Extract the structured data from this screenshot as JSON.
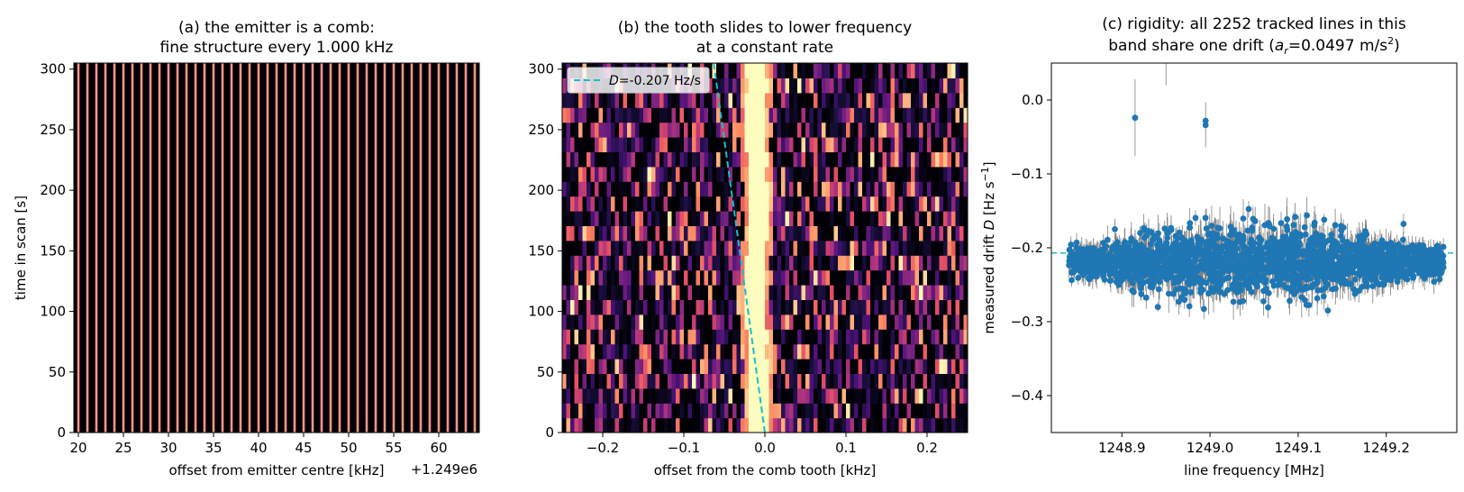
{
  "chart_data": [
    {
      "type": "heatmap",
      "panel": "a",
      "title_line1": "(a) the emitter is a comb:",
      "title_line2": "fine structure every 1.000 kHz",
      "xlabel": "offset from emitter centre [kHz]",
      "ylabel": "time in scan [s]",
      "x_offset_label": "+1.249e6",
      "xlim": [
        19.5,
        64.5
      ],
      "ylim": [
        0,
        305
      ],
      "xticks": [
        "20",
        "25",
        "30",
        "35",
        "40",
        "45",
        "50",
        "55",
        "60"
      ],
      "yticks": [
        "0",
        "50",
        "100",
        "150",
        "200",
        "250",
        "300"
      ],
      "tooth_spacing_khz": 1.0,
      "first_tooth_khz": 20.0,
      "colormap": "magma"
    },
    {
      "type": "heatmap",
      "panel": "b",
      "title_line1": "(b) the tooth slides to lower frequency",
      "title_line2": "at a constant rate",
      "xlabel": "offset from the comb tooth [kHz]",
      "xlim": [
        -0.25,
        0.25
      ],
      "ylim": [
        0,
        305
      ],
      "xticks": [
        "−0.2",
        "−0.1",
        "0.0",
        "0.1",
        "0.2"
      ],
      "yticks": [
        "0",
        "50",
        "100",
        "150",
        "200",
        "250",
        "300"
      ],
      "legend_label_italic": "D",
      "legend_label_rest": "=-0.207 Hz/s",
      "legend_placement": "upper-left",
      "drift_hz_per_s": -0.207,
      "fit_line_color": "#17becf",
      "colormap": "magma"
    },
    {
      "type": "scatter",
      "panel": "c",
      "title_line1": "(c) rigidity: all 2252 tracked lines in this",
      "title_line2_pre": "band share one drift (",
      "title_line2_var": "a",
      "title_line2_sub": "r",
      "title_line2_mid": "=0.0497 m/s",
      "title_line2_sup": "2",
      "title_line2_post": ")",
      "xlabel": "line frequency [MHz]",
      "ylabel_pre": "measured drift  ",
      "ylabel_var": "D",
      "ylabel_unit_pre": "  [Hz s",
      "ylabel_unit_sup": "−1",
      "ylabel_unit_post": "]",
      "xlim": [
        1248.82,
        1249.28
      ],
      "ylim": [
        -0.45,
        0.05
      ],
      "xticks": [
        "1248.9",
        "1249.0",
        "1249.1",
        "1249.2"
      ],
      "yticks": [
        "0.0",
        "−0.1",
        "−0.2",
        "−0.3",
        "−0.4"
      ],
      "mean_drift": -0.207,
      "n_lines": 2252,
      "point_color": "#1f77b4",
      "mean_line_color": "#17becf",
      "outliers": [
        {
          "x": 1248.915,
          "y": -0.024,
          "err": 0.052
        },
        {
          "x": 1248.995,
          "y": -0.028,
          "err": 0.025
        },
        {
          "x": 1248.995,
          "y": -0.034,
          "err": 0.03
        },
        {
          "x": 1248.95,
          "y": 0.08,
          "err": 0.06
        }
      ]
    }
  ]
}
